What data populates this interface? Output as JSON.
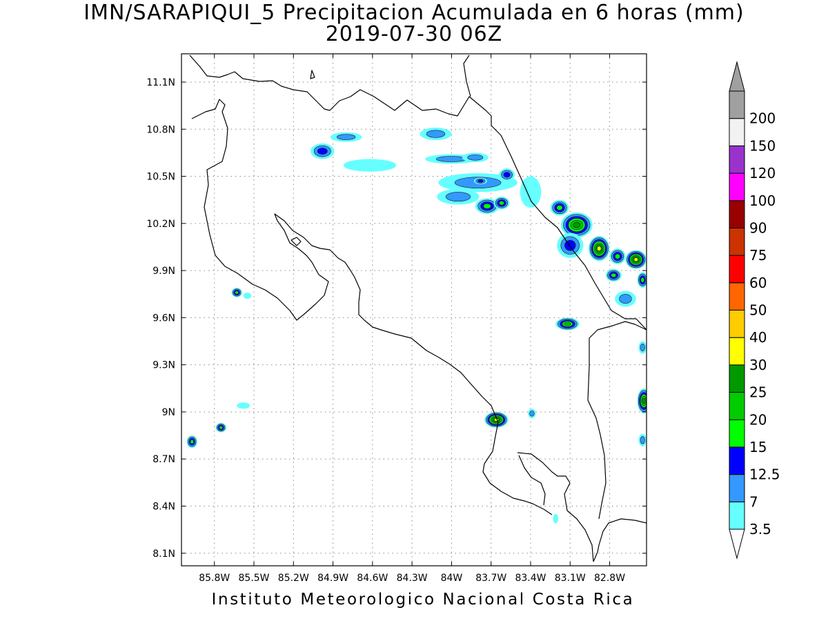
{
  "header": {
    "title_line1": "IMN/SARAPIQUI_5 Precipitacion Acumulada en 6 horas (mm)",
    "title_line2": "2019-07-30 06Z"
  },
  "footer": {
    "credit": "Instituto Meteorologico Nacional Costa Rica"
  },
  "map": {
    "lon_range": [
      -86.05,
      -82.52
    ],
    "lat_range": [
      8.02,
      11.28
    ],
    "lon_ticks": [
      {
        "value": -85.8,
        "label": "85.8W"
      },
      {
        "value": -85.5,
        "label": "85.5W"
      },
      {
        "value": -85.2,
        "label": "85.2W"
      },
      {
        "value": -84.9,
        "label": "84.9W"
      },
      {
        "value": -84.6,
        "label": "84.6W"
      },
      {
        "value": -84.3,
        "label": "84.3W"
      },
      {
        "value": -84.0,
        "label": "84W"
      },
      {
        "value": -83.7,
        "label": "83.7W"
      },
      {
        "value": -83.4,
        "label": "83.4W"
      },
      {
        "value": -83.1,
        "label": "83.1W"
      },
      {
        "value": -82.8,
        "label": "82.8W"
      }
    ],
    "lat_ticks": [
      {
        "value": 11.1,
        "label": "11.1N"
      },
      {
        "value": 10.8,
        "label": "10.8N"
      },
      {
        "value": 10.5,
        "label": "10.5N"
      },
      {
        "value": 10.2,
        "label": "10.2N"
      },
      {
        "value": 9.9,
        "label": "9.9N"
      },
      {
        "value": 9.6,
        "label": "9.6N"
      },
      {
        "value": 9.3,
        "label": "9.3N"
      },
      {
        "value": 9.0,
        "label": "9N"
      },
      {
        "value": 8.7,
        "label": "8.7N"
      },
      {
        "value": 8.4,
        "label": "8.4N"
      },
      {
        "value": 8.1,
        "label": "8.1N"
      }
    ],
    "grid": "dotted"
  },
  "colorbar": {
    "levels": [
      {
        "label": "3.5",
        "color": "#66ffff"
      },
      {
        "label": "7",
        "color": "#3399ff"
      },
      {
        "label": "12.5",
        "color": "#0000ff"
      },
      {
        "label": "15",
        "color": "#00ff00"
      },
      {
        "label": "20",
        "color": "#00cc00"
      },
      {
        "label": "25",
        "color": "#009900"
      },
      {
        "label": "30",
        "color": "#ffff00"
      },
      {
        "label": "40",
        "color": "#ffcc00"
      },
      {
        "label": "50",
        "color": "#ff6600"
      },
      {
        "label": "60",
        "color": "#ff0000"
      },
      {
        "label": "75",
        "color": "#cc3300"
      },
      {
        "label": "90",
        "color": "#990000"
      },
      {
        "label": "100",
        "color": "#ff00ff"
      },
      {
        "label": "120",
        "color": "#9933cc"
      },
      {
        "label": "150",
        "color": "#f2f2f2"
      },
      {
        "label": "200",
        "color": "#a0a0a0"
      }
    ],
    "low_cap_color": "#ffffff",
    "high_cap_color": "#a0a0a0"
  },
  "rain_cells": [
    {
      "lon": -84.98,
      "lat": 10.66,
      "rx": 0.09,
      "ry": 0.05,
      "level": 2
    },
    {
      "lon": -84.8,
      "lat": 10.75,
      "rx": 0.12,
      "ry": 0.03,
      "level": 1
    },
    {
      "lon": -84.62,
      "lat": 10.57,
      "rx": 0.2,
      "ry": 0.04,
      "level": 0
    },
    {
      "lon": -84.12,
      "lat": 10.77,
      "rx": 0.12,
      "ry": 0.04,
      "level": 1
    },
    {
      "lon": -84.0,
      "lat": 10.61,
      "rx": 0.2,
      "ry": 0.03,
      "level": 1
    },
    {
      "lon": -83.82,
      "lat": 10.62,
      "rx": 0.1,
      "ry": 0.03,
      "level": 1
    },
    {
      "lon": -83.8,
      "lat": 10.46,
      "rx": 0.3,
      "ry": 0.06,
      "level": 1
    },
    {
      "lon": -83.78,
      "lat": 10.47,
      "rx": 0.05,
      "ry": 0.02,
      "level": 2
    },
    {
      "lon": -83.58,
      "lat": 10.51,
      "rx": 0.06,
      "ry": 0.04,
      "level": 2
    },
    {
      "lon": -83.95,
      "lat": 10.37,
      "rx": 0.16,
      "ry": 0.05,
      "level": 1
    },
    {
      "lon": -83.73,
      "lat": 10.31,
      "rx": 0.09,
      "ry": 0.05,
      "level": 3
    },
    {
      "lon": -83.62,
      "lat": 10.33,
      "rx": 0.06,
      "ry": 0.04,
      "level": 3
    },
    {
      "lon": -83.4,
      "lat": 10.4,
      "rx": 0.08,
      "ry": 0.1,
      "level": 0
    },
    {
      "lon": -83.18,
      "lat": 10.3,
      "rx": 0.07,
      "ry": 0.05,
      "level": 3
    },
    {
      "lon": -83.05,
      "lat": 10.19,
      "rx": 0.12,
      "ry": 0.08,
      "level": 5
    },
    {
      "lon": -83.1,
      "lat": 10.06,
      "rx": 0.1,
      "ry": 0.08,
      "level": 2
    },
    {
      "lon": -82.88,
      "lat": 10.04,
      "rx": 0.08,
      "ry": 0.08,
      "level": 6
    },
    {
      "lon": -82.74,
      "lat": 9.99,
      "rx": 0.06,
      "ry": 0.05,
      "level": 3
    },
    {
      "lon": -82.6,
      "lat": 9.97,
      "rx": 0.08,
      "ry": 0.06,
      "level": 6
    },
    {
      "lon": -82.77,
      "lat": 9.87,
      "rx": 0.06,
      "ry": 0.04,
      "level": 3
    },
    {
      "lon": -82.55,
      "lat": 9.84,
      "rx": 0.04,
      "ry": 0.05,
      "level": 3
    },
    {
      "lon": -82.68,
      "lat": 9.72,
      "rx": 0.08,
      "ry": 0.05,
      "level": 1
    },
    {
      "lon": -83.12,
      "lat": 9.56,
      "rx": 0.09,
      "ry": 0.04,
      "level": 4
    },
    {
      "lon": -82.55,
      "lat": 9.41,
      "rx": 0.03,
      "ry": 0.04,
      "level": 1
    },
    {
      "lon": -82.54,
      "lat": 9.07,
      "rx": 0.05,
      "ry": 0.08,
      "level": 5
    },
    {
      "lon": -82.55,
      "lat": 8.82,
      "rx": 0.03,
      "ry": 0.04,
      "level": 1
    },
    {
      "lon": -83.66,
      "lat": 8.95,
      "rx": 0.09,
      "ry": 0.05,
      "level": 6
    },
    {
      "lon": -83.39,
      "lat": 8.99,
      "rx": 0.03,
      "ry": 0.03,
      "level": 1
    },
    {
      "lon": -83.21,
      "lat": 8.32,
      "rx": 0.02,
      "ry": 0.03,
      "level": 0
    },
    {
      "lon": -85.63,
      "lat": 9.76,
      "rx": 0.04,
      "ry": 0.03,
      "level": 3
    },
    {
      "lon": -85.55,
      "lat": 9.74,
      "rx": 0.03,
      "ry": 0.02,
      "level": 0
    },
    {
      "lon": -85.58,
      "lat": 9.04,
      "rx": 0.05,
      "ry": 0.02,
      "level": 0
    },
    {
      "lon": -85.75,
      "lat": 8.9,
      "rx": 0.04,
      "ry": 0.03,
      "level": 3
    },
    {
      "lon": -85.97,
      "lat": 8.81,
      "rx": 0.04,
      "ry": 0.04,
      "level": 3
    }
  ]
}
